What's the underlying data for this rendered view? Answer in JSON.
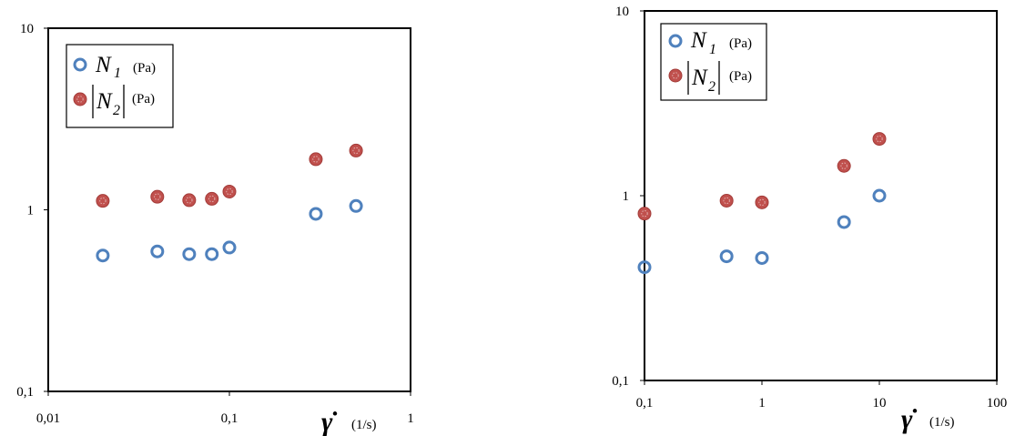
{
  "colors": {
    "n1": "#4f81bd",
    "n2_fill": "#c0504d",
    "n2_stroke": "#a33b38",
    "axis": "#000000"
  },
  "chart_data": [
    {
      "type": "scatter",
      "log_x": true,
      "log_y": true,
      "xlim": [
        0.01,
        1
      ],
      "ylim": [
        0.1,
        10
      ],
      "x_tick_labels": [
        "0,01",
        "0,1",
        "1"
      ],
      "y_tick_labels": [
        "0,1",
        "1",
        "10"
      ],
      "xlabel": {
        "symbol": "γ̇",
        "unit": "(1/s)"
      },
      "legend": {
        "placement": "top-left",
        "entries": [
          {
            "symbol": "N",
            "sub": "1",
            "abs": false,
            "unit": "(Pa)"
          },
          {
            "symbol": "N",
            "sub": "2",
            "abs": true,
            "unit": "(Pa)"
          }
        ]
      },
      "series": [
        {
          "name": "N1 (Pa)",
          "marker": "open-circle",
          "x": [
            0.02,
            0.04,
            0.06,
            0.08,
            0.1,
            0.3,
            0.5
          ],
          "y": [
            0.56,
            0.59,
            0.57,
            0.57,
            0.62,
            0.95,
            1.05
          ]
        },
        {
          "name": "|N2| (Pa)",
          "marker": "filled-circle",
          "x": [
            0.02,
            0.04,
            0.06,
            0.08,
            0.1,
            0.3,
            0.5
          ],
          "y": [
            1.12,
            1.18,
            1.13,
            1.15,
            1.26,
            1.9,
            2.12
          ]
        }
      ]
    },
    {
      "type": "scatter",
      "log_x": true,
      "log_y": true,
      "xlim": [
        0.1,
        100
      ],
      "ylim": [
        0.1,
        10
      ],
      "x_tick_labels": [
        "0,1",
        "1",
        "10",
        "100"
      ],
      "y_tick_labels": [
        "0,1",
        "1",
        "10"
      ],
      "xlabel": {
        "symbol": "γ̇",
        "unit": "(1/s)"
      },
      "legend": {
        "placement": "top-left",
        "entries": [
          {
            "symbol": "N",
            "sub": "1",
            "abs": false,
            "unit": "(Pa)"
          },
          {
            "symbol": "N",
            "sub": "2",
            "abs": true,
            "unit": "(Pa)"
          }
        ]
      },
      "series": [
        {
          "name": "N1 (Pa)",
          "marker": "open-circle",
          "x": [
            0.1,
            0.5,
            1,
            5,
            10
          ],
          "y": [
            0.41,
            0.47,
            0.46,
            0.72,
            1.0
          ]
        },
        {
          "name": "|N2| (Pa)",
          "marker": "filled-circle",
          "x": [
            0.1,
            0.5,
            1,
            5,
            10
          ],
          "y": [
            0.8,
            0.94,
            0.92,
            1.45,
            2.03
          ]
        }
      ]
    }
  ]
}
